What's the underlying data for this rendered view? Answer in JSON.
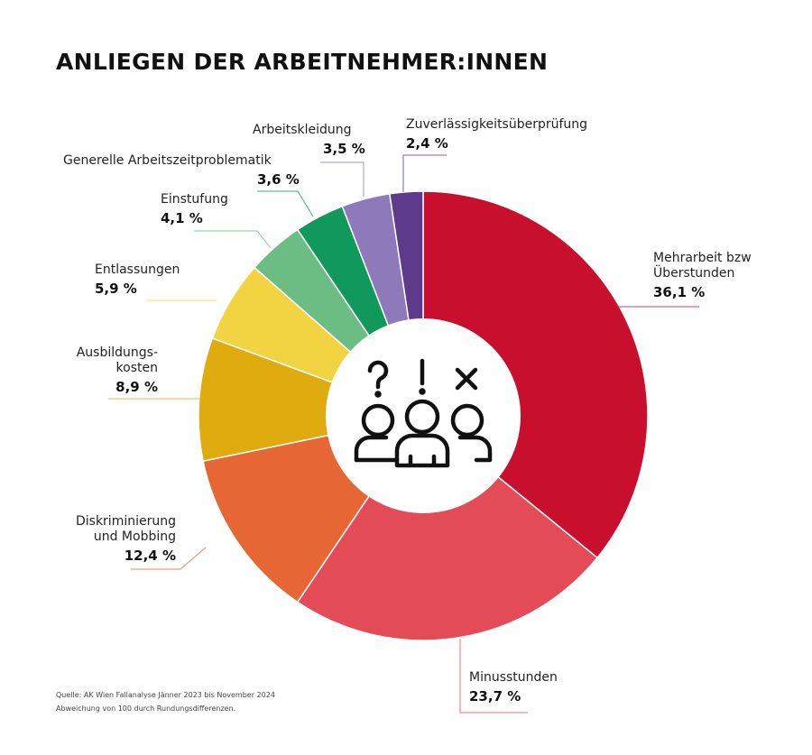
{
  "chart_data": {
    "type": "pie",
    "title": "ANLIEGEN DER ARBEITNEHMER:INNEN",
    "donut": true,
    "slices": [
      {
        "label": "Mehrarbeit bzw Überstunden",
        "lines": [
          "Mehrarbeit bzw",
          "Überstunden"
        ],
        "value": 36.1,
        "display": "36,1 %",
        "color": "#c8102e"
      },
      {
        "label": "Minusstunden",
        "lines": [
          "Minusstunden"
        ],
        "value": 23.7,
        "display": "23,7 %",
        "color": "#e34b57"
      },
      {
        "label": "Diskriminierung und Mobbing",
        "lines": [
          "Diskriminierung",
          "und Mobbing"
        ],
        "value": 12.4,
        "display": "12,4 %",
        "color": "#e66733"
      },
      {
        "label": "Ausbildungskosten",
        "lines": [
          "Ausbildungs-",
          "kosten"
        ],
        "value": 8.9,
        "display": "8,9 %",
        "color": "#dfab0e"
      },
      {
        "label": "Entlassungen",
        "lines": [
          "Entlassungen"
        ],
        "value": 5.9,
        "display": "5,9 %",
        "color": "#f2d443"
      },
      {
        "label": "Einstufung",
        "lines": [
          "Einstufung"
        ],
        "value": 4.1,
        "display": "4,1 %",
        "color": "#6cbd84"
      },
      {
        "label": "Generelle Arbeitszeitproblematik",
        "lines": [
          "Generelle Arbeitszeitproblematik"
        ],
        "value": 3.6,
        "display": "3,6 %",
        "color": "#10995a"
      },
      {
        "label": "Arbeitskleidung",
        "lines": [
          "Arbeitskleidung"
        ],
        "value": 3.5,
        "display": "3,5 %",
        "color": "#8e7abb"
      },
      {
        "label": "Zuverlässigkeitsüberprüfung",
        "lines": [
          "Zuverlässigkeitsüberprüfung"
        ],
        "value": 2.4,
        "display": "2,4 %",
        "color": "#5e3a8d"
      }
    ],
    "center_icon": "people-question-exclamation-cross-icon"
  },
  "notes": {
    "source": "Quelle: AK Wien Fallanalyse Jänner 2023 bis November 2024",
    "rounding": "Abweichung von 100 durch Rundungsdifferenzen."
  }
}
